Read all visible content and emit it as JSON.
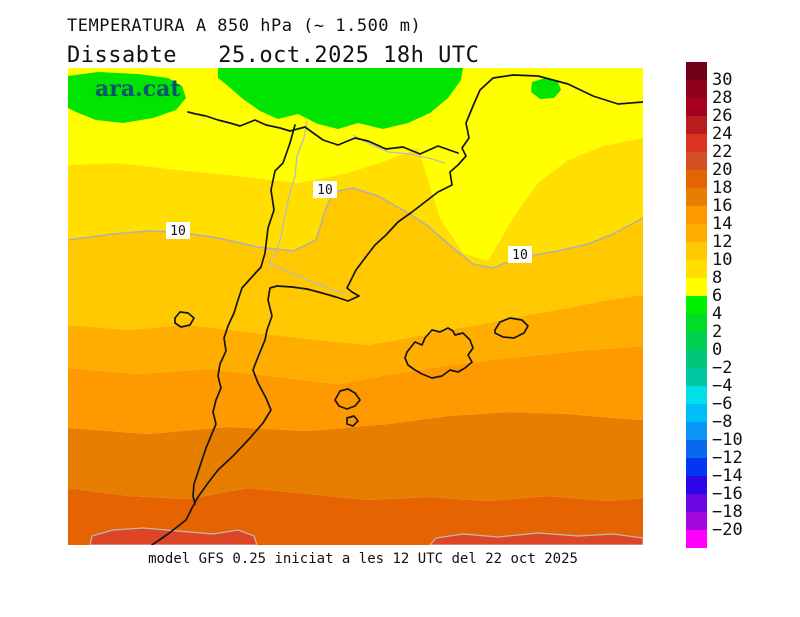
{
  "header": {
    "title": "TEMPERATURA A 850 hPa (~ 1.500 m)",
    "subtitle": "Dissabte   25.oct.2025 18h UTC"
  },
  "branding": {
    "logo_text": "ara.cat",
    "logo_color": "#02546F"
  },
  "footer": {
    "text": "model GFS 0.25 iniciat a les 12 UTC del 22 oct 2025"
  },
  "colorbar": {
    "tick_labels": [
      "30",
      "28",
      "26",
      "24",
      "22",
      "20",
      "18",
      "16",
      "14",
      "12",
      "10",
      "8",
      "6",
      "4",
      "2",
      "0",
      "−2",
      "−4",
      "−6",
      "−8",
      "−10",
      "−12",
      "−14",
      "−16",
      "−18",
      "−20"
    ],
    "segment_colors": [
      "#700018",
      "#8E001E",
      "#A6001E",
      "#B71D1D",
      "#DC3220",
      "#D54F24",
      "#E56300",
      "#E87E00",
      "#FF9900",
      "#FFAE00",
      "#FFC800",
      "#FFDE00",
      "#FFFF00",
      "#00F000",
      "#00DC28",
      "#00D050",
      "#00C878",
      "#00C8A0",
      "#00E0E8",
      "#00BFF8",
      "#0A96F8",
      "#0A68F0",
      "#0336F0",
      "#2B07E8",
      "#6A07E0",
      "#A307DD",
      "#FF00FF"
    ]
  },
  "map": {
    "band_colors": [
      "#FFFF00",
      "#FFDE00",
      "#FFC800",
      "#FFAE00",
      "#FF9900",
      "#E87E00",
      "#E56300"
    ],
    "cold_patch_color": "#00E400",
    "hot_patch_color": "#DE4524",
    "isotherm_label": "10",
    "isotherm_line_color": "#B0B0B0",
    "region_border_color": "#BBBBBB",
    "coastline_color": "#151515",
    "label_box_color": "#FFFFFF"
  }
}
